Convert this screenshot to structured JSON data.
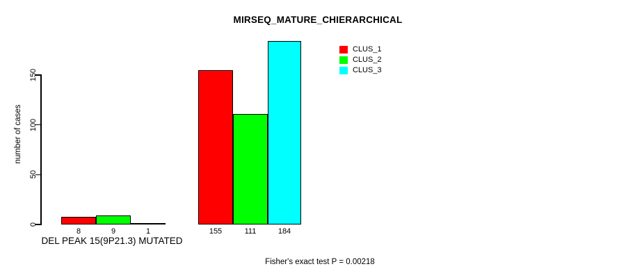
{
  "chart_data": {
    "type": "bar",
    "title": "MIRSEQ_MATURE_CHIERARCHICAL",
    "ylabel": "number of cases",
    "xlabel": "DEL PEAK 15(9P21.3) MUTATED",
    "annotation": "Fisher's exact test P = 0.00218",
    "yticks": [
      0,
      50,
      100,
      150
    ],
    "ylim": [
      0,
      190
    ],
    "grid": false,
    "legend_position": "top-right",
    "legend": [
      {
        "name": "CLUS_1",
        "color": "#ff0000"
      },
      {
        "name": "CLUS_2",
        "color": "#00ff00"
      },
      {
        "name": "CLUS_3",
        "color": "#00ffff"
      }
    ],
    "groups": [
      {
        "bars": [
          {
            "series": "CLUS_1",
            "value": 8,
            "label": "8"
          },
          {
            "series": "CLUS_2",
            "value": 9,
            "label": "9"
          },
          {
            "series": "CLUS_3",
            "value": 1,
            "label": "1"
          }
        ]
      },
      {
        "bars": [
          {
            "series": "CLUS_1",
            "value": 155,
            "label": "155"
          },
          {
            "series": "CLUS_2",
            "value": 111,
            "label": "111"
          },
          {
            "series": "CLUS_3",
            "value": 184,
            "label": "184"
          }
        ]
      }
    ]
  }
}
